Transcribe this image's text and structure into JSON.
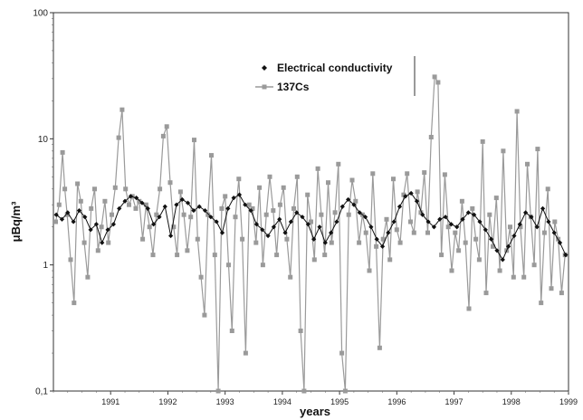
{
  "chart_data": {
    "type": "line",
    "yscale": "log",
    "ylim": [
      0.1,
      100
    ],
    "xlim": [
      1990,
      1999
    ],
    "ylabel": "μBq/m³",
    "xlabel": "years",
    "legend_position": "upper-center",
    "grid": false,
    "y_ticks": [
      "0,1",
      "1",
      "10",
      "100"
    ],
    "x_ticks": [
      "1991",
      "1992",
      "1993",
      "1994",
      "1995",
      "1996",
      "1997",
      "1998",
      "1999"
    ],
    "series": [
      {
        "name": "Electrical conductivity",
        "marker": "diamond",
        "color": "#111111",
        "x": [
          1990.05,
          1990.15,
          1990.25,
          1990.35,
          1990.45,
          1990.55,
          1990.65,
          1990.75,
          1990.85,
          1990.95,
          1991.05,
          1991.15,
          1991.25,
          1991.35,
          1991.45,
          1991.55,
          1991.65,
          1991.75,
          1991.85,
          1991.95,
          1992.05,
          1992.15,
          1992.25,
          1992.35,
          1992.45,
          1992.55,
          1992.65,
          1992.75,
          1992.85,
          1992.95,
          1993.05,
          1993.15,
          1993.25,
          1993.35,
          1993.45,
          1993.55,
          1993.65,
          1993.75,
          1993.85,
          1993.95,
          1994.05,
          1994.15,
          1994.25,
          1994.35,
          1994.45,
          1994.55,
          1994.65,
          1994.75,
          1994.85,
          1994.95,
          1995.05,
          1995.15,
          1995.25,
          1995.35,
          1995.45,
          1995.55,
          1995.65,
          1995.75,
          1995.85,
          1995.95,
          1996.05,
          1996.15,
          1996.25,
          1996.35,
          1996.45,
          1996.55,
          1996.65,
          1996.75,
          1996.85,
          1996.95,
          1997.05,
          1997.15,
          1997.25,
          1997.35,
          1997.45,
          1997.55,
          1997.65,
          1997.75,
          1997.85,
          1997.95,
          1998.05,
          1998.15,
          1998.25,
          1998.35,
          1998.45,
          1998.55,
          1998.65,
          1998.75,
          1998.85,
          1998.95
        ],
        "y": [
          2.5,
          2.3,
          2.6,
          2.2,
          2.7,
          2.4,
          1.9,
          2.1,
          1.5,
          1.9,
          2.1,
          2.8,
          3.2,
          3.5,
          3.4,
          3.1,
          2.8,
          2.1,
          2.4,
          2.9,
          1.7,
          3.0,
          3.3,
          3.1,
          2.7,
          2.9,
          2.7,
          2.4,
          2.2,
          1.8,
          2.8,
          3.4,
          3.6,
          3.0,
          2.7,
          2.1,
          1.9,
          1.7,
          2.0,
          2.3,
          1.8,
          2.2,
          2.6,
          2.4,
          2.1,
          1.6,
          2.0,
          1.5,
          1.8,
          2.2,
          2.9,
          3.3,
          3.0,
          2.6,
          2.4,
          2.0,
          1.6,
          1.4,
          1.8,
          2.2,
          2.9,
          3.5,
          3.7,
          3.2,
          2.5,
          2.2,
          2.0,
          2.3,
          2.4,
          2.1,
          2.0,
          2.3,
          2.6,
          2.5,
          2.2,
          1.9,
          1.6,
          1.3,
          1.1,
          1.4,
          1.7,
          2.1,
          2.6,
          2.4,
          2.0,
          2.8,
          2.2,
          1.8,
          1.5,
          1.2
        ]
      },
      {
        "name": "137Cs",
        "marker": "square",
        "color": "#9a9a9a",
        "x": [
          1990.04,
          1990.1,
          1990.16,
          1990.2,
          1990.24,
          1990.3,
          1990.36,
          1990.42,
          1990.48,
          1990.54,
          1990.6,
          1990.66,
          1990.72,
          1990.78,
          1990.84,
          1990.9,
          1990.96,
          1991.02,
          1991.08,
          1991.14,
          1991.2,
          1991.26,
          1991.32,
          1991.38,
          1991.44,
          1991.5,
          1991.56,
          1991.62,
          1991.68,
          1991.74,
          1991.8,
          1991.86,
          1991.92,
          1991.98,
          1992.04,
          1992.1,
          1992.16,
          1992.22,
          1992.28,
          1992.34,
          1992.4,
          1992.46,
          1992.52,
          1992.58,
          1992.64,
          1992.7,
          1992.76,
          1992.82,
          1992.88,
          1992.94,
          1993.0,
          1993.06,
          1993.12,
          1993.18,
          1993.24,
          1993.3,
          1993.36,
          1993.42,
          1993.48,
          1993.54,
          1993.6,
          1993.66,
          1993.72,
          1993.78,
          1993.84,
          1993.9,
          1993.96,
          1994.02,
          1994.08,
          1994.14,
          1994.2,
          1994.26,
          1994.32,
          1994.38,
          1994.44,
          1994.5,
          1994.56,
          1994.62,
          1994.68,
          1994.74,
          1994.8,
          1994.86,
          1994.92,
          1994.98,
          1995.04,
          1995.1,
          1995.16,
          1995.22,
          1995.28,
          1995.34,
          1995.4,
          1995.46,
          1995.52,
          1995.58,
          1995.64,
          1995.7,
          1995.76,
          1995.82,
          1995.88,
          1995.94,
          1996.0,
          1996.06,
          1996.12,
          1996.18,
          1996.24,
          1996.3,
          1996.36,
          1996.42,
          1996.48,
          1996.54,
          1996.6,
          1996.66,
          1996.72,
          1996.78,
          1996.84,
          1996.9,
          1996.96,
          1997.02,
          1997.08,
          1997.14,
          1997.2,
          1997.26,
          1997.32,
          1997.38,
          1997.44,
          1997.5,
          1997.56,
          1997.62,
          1997.68,
          1997.74,
          1997.8,
          1997.86,
          1997.92,
          1997.98,
          1998.04,
          1998.1,
          1998.16,
          1998.22,
          1998.28,
          1998.34,
          1998.4,
          1998.46,
          1998.52,
          1998.58,
          1998.64,
          1998.7,
          1998.76,
          1998.82,
          1998.88,
          1998.94
        ],
        "y": [
          2.2,
          3.0,
          7.8,
          4.0,
          2.5,
          1.1,
          0.5,
          4.4,
          3.2,
          1.5,
          0.8,
          2.8,
          4.0,
          1.3,
          2.0,
          3.2,
          1.5,
          2.5,
          4.1,
          10.2,
          17.0,
          4.0,
          3.0,
          3.5,
          2.8,
          3.2,
          1.6,
          3.0,
          2.0,
          1.2,
          2.5,
          4.0,
          10.5,
          12.5,
          4.5,
          2.0,
          1.2,
          3.8,
          2.5,
          1.3,
          2.4,
          9.8,
          1.6,
          0.8,
          0.4,
          2.5,
          7.4,
          1.2,
          0.1,
          2.8,
          3.5,
          1.0,
          0.3,
          2.4,
          4.8,
          1.6,
          0.2,
          3.0,
          2.8,
          1.5,
          4.1,
          1.0,
          2.5,
          5.0,
          2.7,
          1.2,
          3.0,
          4.1,
          1.6,
          0.8,
          2.8,
          5.0,
          0.3,
          0.1,
          3.6,
          2.2,
          1.1,
          5.8,
          2.5,
          1.2,
          4.5,
          1.5,
          2.6,
          6.3,
          0.2,
          0.1,
          2.5,
          4.7,
          3.2,
          1.5,
          2.5,
          1.8,
          0.9,
          5.3,
          1.4,
          0.22,
          1.6,
          2.3,
          1.1,
          4.8,
          1.9,
          1.5,
          3.6,
          5.3,
          2.2,
          1.8,
          3.8,
          2.6,
          5.4,
          1.8,
          10.3,
          31.0,
          28.0,
          1.2,
          5.2,
          2.0,
          0.9,
          1.8,
          1.3,
          3.2,
          1.5,
          0.45,
          2.8,
          1.6,
          1.1,
          9.5,
          0.6,
          2.5,
          1.4,
          3.4,
          0.9,
          8.0,
          1.3,
          2.0,
          0.8,
          16.5,
          2.0,
          0.8,
          6.3,
          2.4,
          1.0,
          8.3,
          0.5,
          1.8,
          4.0,
          0.65,
          2.2,
          1.6,
          0.6,
          1.2
        ]
      }
    ]
  }
}
